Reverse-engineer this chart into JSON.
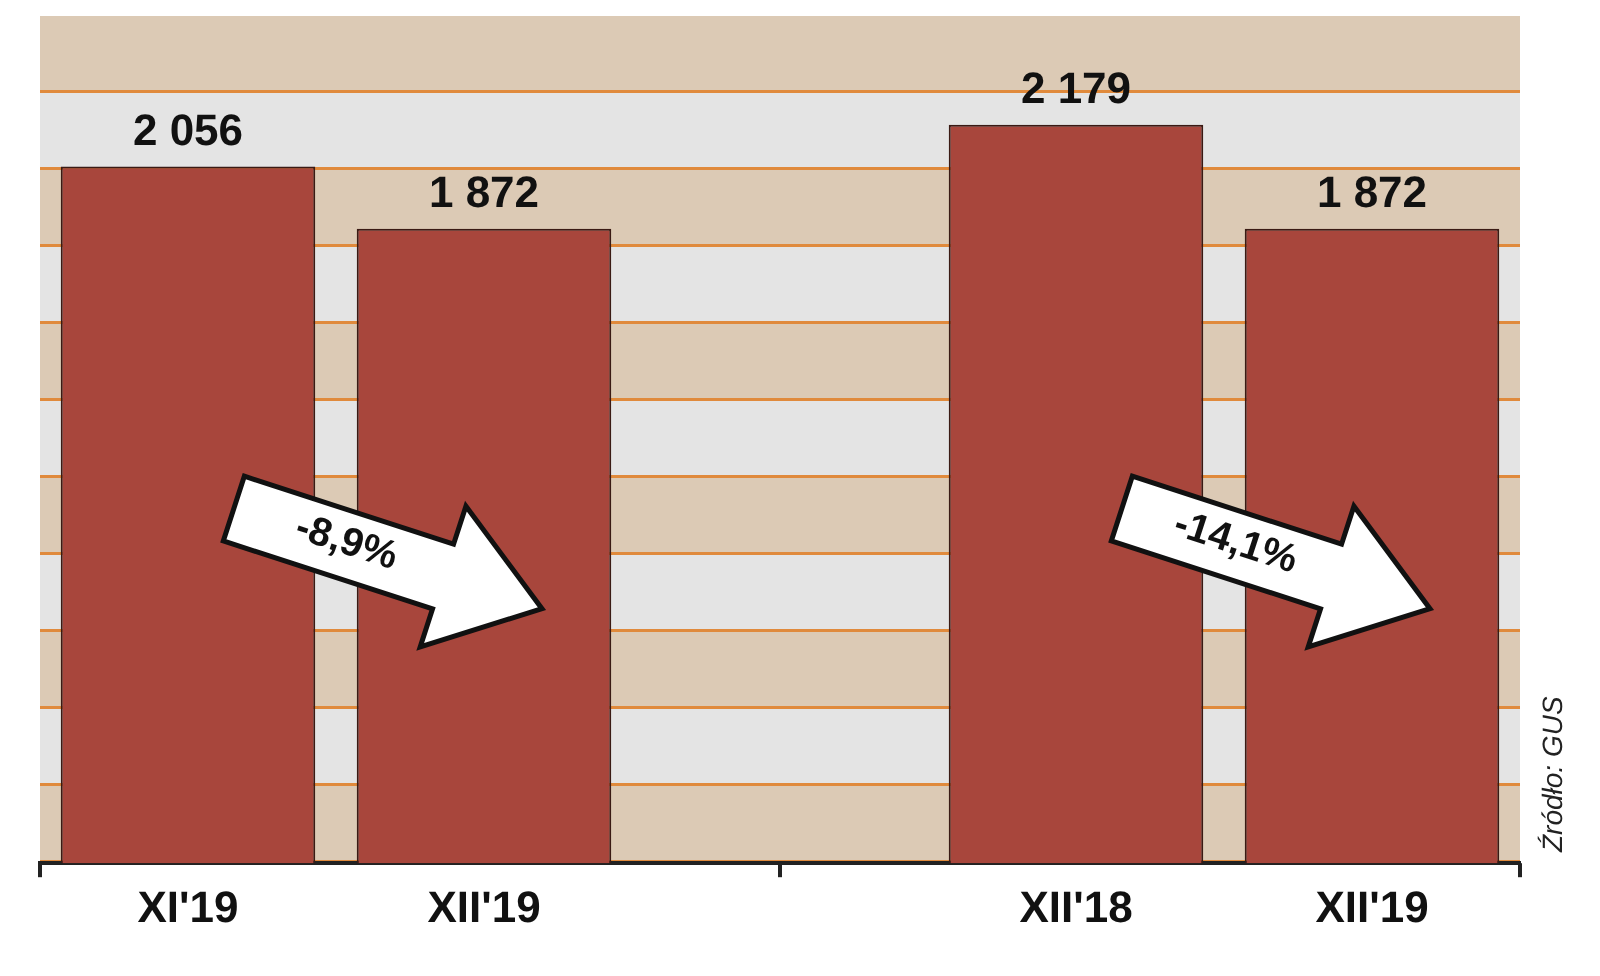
{
  "chart_data": {
    "type": "bar",
    "categories": [
      "XI'19",
      "XII'19",
      null,
      "XII'18",
      "XII'19"
    ],
    "values": [
      2056,
      1872,
      null,
      2179,
      1872
    ],
    "color": "#a8463c",
    "data_labels": true,
    "value_labels": [
      "2 056",
      "1 872",
      null,
      "2 179",
      "1 872"
    ],
    "legend": false,
    "annotations": [
      "-8,9%",
      "-14,1%",
      "Źródło: GUS"
    ]
  }
}
